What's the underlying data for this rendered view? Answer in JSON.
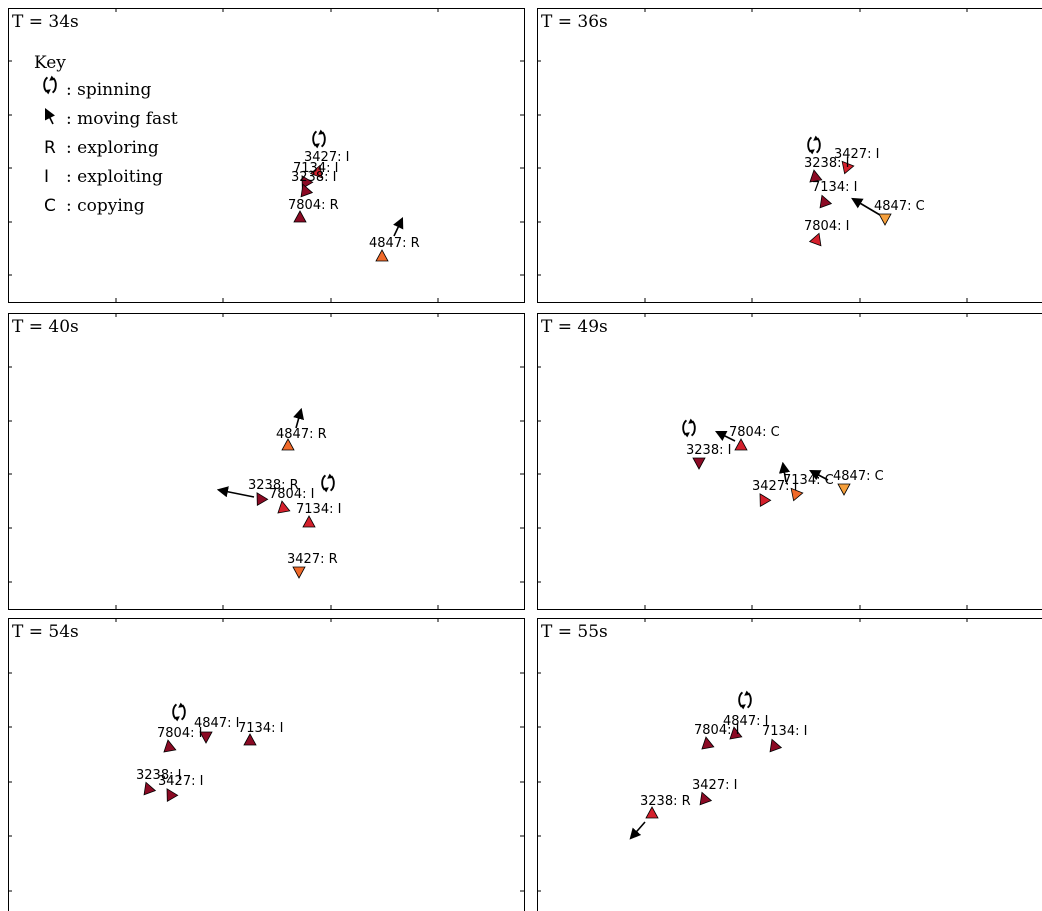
{
  "key": {
    "title": "Key",
    "items": [
      {
        "symbol": "",
        "icon": "spinning-icon",
        "label": ": spinning"
      },
      {
        "symbol": "",
        "icon": "arrow-icon",
        "label": ": moving fast"
      },
      {
        "symbol": "R",
        "label": ": exploring"
      },
      {
        "symbol": "I",
        "label": ": exploiting"
      },
      {
        "symbol": "C",
        "label": ": copying"
      }
    ]
  },
  "colors": {
    "dark": "#8b0a24",
    "red": "#d4202c",
    "orange": "#f06a2a",
    "light": "#f6a03c"
  },
  "panels": [
    {
      "title": "T = 34s",
      "agents": [
        {
          "id": "3427",
          "state": "I",
          "label": "3427: I",
          "color": "red"
        },
        {
          "id": "7134",
          "state": "I",
          "label": "7134: I",
          "color": "dark"
        },
        {
          "id": "3238",
          "state": "I",
          "label": "3238: I",
          "color": "dark"
        },
        {
          "id": "7804",
          "state": "R",
          "label": "7804: R",
          "color": "dark"
        },
        {
          "id": "4847",
          "state": "R",
          "label": "4847: R",
          "color": "orange"
        }
      ]
    },
    {
      "title": "T = 36s",
      "agents": [
        {
          "id": "3427",
          "state": "I",
          "label": "3427: I",
          "color": "red"
        },
        {
          "id": "3238",
          "state": "I",
          "label": "3238: I",
          "color": "dark"
        },
        {
          "id": "7134",
          "state": "I",
          "label": "7134: I",
          "color": "dark"
        },
        {
          "id": "4847",
          "state": "C",
          "label": "4847: C",
          "color": "light"
        },
        {
          "id": "7804",
          "state": "I",
          "label": "7804: I",
          "color": "red"
        }
      ]
    },
    {
      "title": "T = 40s",
      "agents": [
        {
          "id": "4847",
          "state": "R",
          "label": "4847: R",
          "color": "orange"
        },
        {
          "id": "3238",
          "state": "R",
          "label": "3238: R",
          "color": "dark"
        },
        {
          "id": "7804",
          "state": "I",
          "label": "7804: I",
          "color": "red"
        },
        {
          "id": "7134",
          "state": "I",
          "label": "7134: I",
          "color": "red"
        },
        {
          "id": "3427",
          "state": "R",
          "label": "3427: R",
          "color": "orange"
        }
      ]
    },
    {
      "title": "T = 49s",
      "agents": [
        {
          "id": "7804",
          "state": "C",
          "label": "7804: C",
          "color": "red"
        },
        {
          "id": "3238",
          "state": "I",
          "label": "3238: I",
          "color": "dark"
        },
        {
          "id": "3427",
          "state": "I",
          "label": "3427: I",
          "color": "red"
        },
        {
          "id": "7134",
          "state": "C",
          "label": "7134: C",
          "color": "orange"
        },
        {
          "id": "4847",
          "state": "C",
          "label": "4847: C",
          "color": "light"
        }
      ]
    },
    {
      "title": "T = 54s",
      "agents": [
        {
          "id": "4847",
          "state": "I",
          "label": "4847: I",
          "color": "dark"
        },
        {
          "id": "7134",
          "state": "I",
          "label": "7134: I",
          "color": "dark"
        },
        {
          "id": "7804",
          "state": "I",
          "label": "7804: I",
          "color": "dark"
        },
        {
          "id": "3238",
          "state": "I",
          "label": "3238: I",
          "color": "dark"
        },
        {
          "id": "3427",
          "state": "I",
          "label": "3427: I",
          "color": "dark"
        }
      ]
    },
    {
      "title": "T = 55s",
      "agents": [
        {
          "id": "4847",
          "state": "I",
          "label": "4847: I",
          "color": "dark"
        },
        {
          "id": "7804",
          "state": "I",
          "label": "7804: I",
          "color": "dark"
        },
        {
          "id": "7134",
          "state": "I",
          "label": "7134: I",
          "color": "dark"
        },
        {
          "id": "3427",
          "state": "I",
          "label": "3427: I",
          "color": "dark"
        },
        {
          "id": "3238",
          "state": "R",
          "label": "3238: R",
          "color": "red"
        }
      ]
    }
  ]
}
